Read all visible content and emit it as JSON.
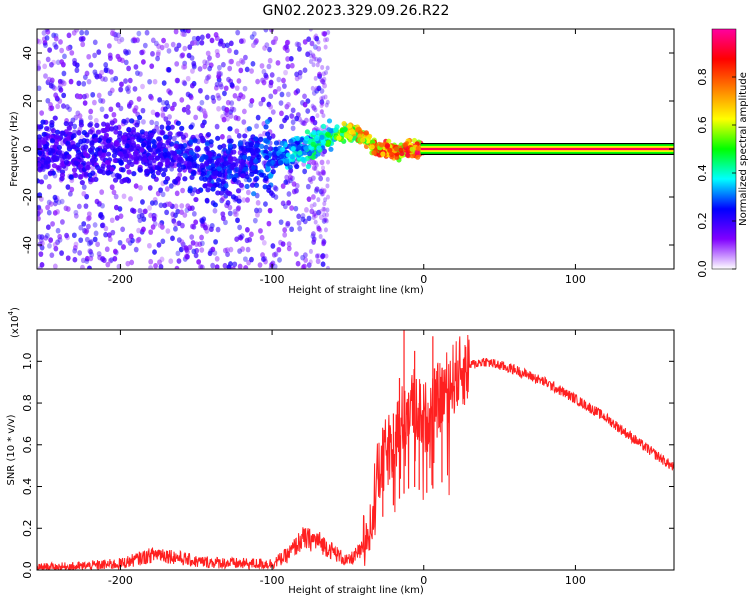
{
  "figure": {
    "title": "GN02.2023.329.09.26.R22"
  },
  "chart_data": [
    {
      "type": "heatmap",
      "title": "GN02.2023.329.09.26.R22",
      "xlabel": "Height of straight line (km)",
      "ylabel": "Frequency (Hz)",
      "xlim": [
        -255,
        165
      ],
      "ylim": [
        -50,
        50
      ],
      "xticks": [
        "-200",
        "-100",
        "0",
        "100"
      ],
      "yticks": [
        "-40",
        "-20",
        "0",
        "20",
        "40"
      ],
      "colorbar": {
        "label": "Normalized spectral amplitude",
        "range": [
          0,
          1
        ],
        "ticks": [
          "0.0",
          "0.2",
          "0.4",
          "0.6",
          "0.8"
        ],
        "colormap": [
          "#ffffff",
          "#8000ff",
          "#0000ff",
          "#00ffff",
          "#00ff00",
          "#ffff00",
          "#ff8000",
          "#ff0000",
          "#ff00a0"
        ]
      },
      "ridge": [
        {
          "x": -200,
          "y": -1,
          "amp": 0.25
        },
        {
          "x": -160,
          "y": -2,
          "amp": 0.28
        },
        {
          "x": -140,
          "y": -8,
          "amp": 0.3
        },
        {
          "x": -120,
          "y": -6,
          "amp": 0.3
        },
        {
          "x": -100,
          "y": -3,
          "amp": 0.35
        },
        {
          "x": -80,
          "y": 0,
          "amp": 0.45
        },
        {
          "x": -60,
          "y": 6,
          "amp": 0.55
        },
        {
          "x": -50,
          "y": 7,
          "amp": 0.75
        },
        {
          "x": -40,
          "y": 5,
          "amp": 0.85
        },
        {
          "x": -30,
          "y": 0,
          "amp": 0.9
        },
        {
          "x": -20,
          "y": -1,
          "amp": 0.9
        },
        {
          "x": -10,
          "y": 0,
          "amp": 0.95
        },
        {
          "x": 0,
          "y": 0,
          "amp": 1.0
        },
        {
          "x": 165,
          "y": 0,
          "amp": 1.0
        }
      ]
    },
    {
      "type": "line",
      "xlabel": "Height of straight line (km)",
      "ylabel": "SNR (10 * v/v)",
      "y_multiplier": "(x10",
      "y_multiplier_exp": "4",
      "xlim": [
        -255,
        165
      ],
      "ylim": [
        0,
        1.15
      ],
      "xticks": [
        "-200",
        "-100",
        "0",
        "100"
      ],
      "yticks": [
        "0.0",
        "0.2",
        "0.4",
        "0.6",
        "0.8",
        "1.0"
      ],
      "series": [
        {
          "color": "#ff2020",
          "points": [
            [
              -255,
              0.01
            ],
            [
              -230,
              0.015
            ],
            [
              -200,
              0.03
            ],
            [
              -175,
              0.08
            ],
            [
              -150,
              0.04
            ],
            [
              -120,
              0.03
            ],
            [
              -100,
              0.03
            ],
            [
              -90,
              0.07
            ],
            [
              -80,
              0.15
            ],
            [
              -70,
              0.14
            ],
            [
              -60,
              0.09
            ],
            [
              -50,
              0.04
            ],
            [
              -40,
              0.1
            ],
            [
              -30,
              0.45
            ],
            [
              -25,
              0.55
            ],
            [
              -20,
              0.62
            ],
            [
              -15,
              0.7
            ],
            [
              -10,
              0.78
            ],
            [
              -5,
              0.8
            ],
            [
              0,
              0.72
            ],
            [
              10,
              0.82
            ],
            [
              20,
              0.92
            ],
            [
              30,
              0.98
            ],
            [
              40,
              1.0
            ],
            [
              60,
              0.96
            ],
            [
              80,
              0.9
            ],
            [
              100,
              0.82
            ],
            [
              120,
              0.73
            ],
            [
              140,
              0.62
            ],
            [
              165,
              0.49
            ]
          ],
          "spikes": [
            [
              -27,
              0.62
            ],
            [
              -20,
              0.75
            ],
            [
              -16,
              0.92
            ],
            [
              -13,
              1.15
            ],
            [
              -10,
              0.85
            ],
            [
              -6,
              1.05
            ],
            [
              -3,
              0.8
            ],
            [
              2,
              0.72
            ],
            [
              6,
              1.12
            ],
            [
              12,
              0.9
            ]
          ]
        }
      ]
    }
  ]
}
